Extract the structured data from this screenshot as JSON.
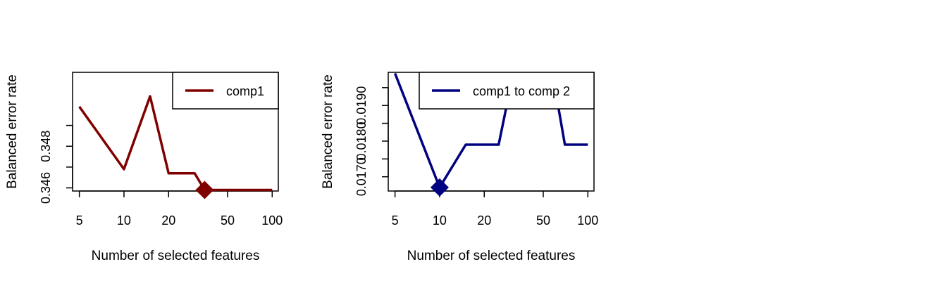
{
  "chart_data": [
    {
      "type": "line",
      "xlabel": "Number of selected features",
      "ylabel": "Balanced error rate",
      "xscale": "log",
      "x_ticks": [
        5,
        10,
        20,
        50,
        100
      ],
      "x_tick_labels": [
        "5",
        "10",
        "20",
        "50",
        "100"
      ],
      "xlim": [
        4.5,
        110
      ],
      "y_ticks": [
        0.346,
        0.347,
        0.348,
        0.349
      ],
      "y_tick_labels": [
        "0.346",
        "",
        "0.348",
        ""
      ],
      "ylim": [
        0.34585,
        0.35155
      ],
      "series": [
        {
          "name": "comp1",
          "color": "#800000",
          "x": [
            5,
            10,
            15,
            20,
            30,
            35,
            40,
            50,
            60,
            70,
            80,
            90,
            100
          ],
          "y": [
            0.3499,
            0.3469,
            0.3504,
            0.3467,
            0.3467,
            0.3459,
            0.3459,
            0.3459,
            0.3459,
            0.3459,
            0.3459,
            0.3459,
            0.3459
          ]
        }
      ],
      "optimum": {
        "x": 35,
        "y": 0.3459,
        "marker": "diamond",
        "color": "#800000"
      },
      "legend_position": "top-right",
      "grid": false
    },
    {
      "type": "line",
      "xlabel": "Number of selected features",
      "ylabel": "Balanced error rate",
      "xscale": "log",
      "x_ticks": [
        5,
        10,
        20,
        50,
        100
      ],
      "x_tick_labels": [
        "5",
        "10",
        "20",
        "50",
        "100"
      ],
      "xlim": [
        4.5,
        110
      ],
      "y_ticks": [
        0.017,
        0.0175,
        0.018,
        0.0185,
        0.019,
        0.0195
      ],
      "y_tick_labels": [
        "0.0170",
        "",
        "0.0180",
        "",
        "0.0190",
        ""
      ],
      "ylim": [
        0.0166,
        0.01993
      ],
      "series": [
        {
          "name": "comp1 to comp 2",
          "color": "#000080",
          "x": [
            5,
            10,
            15,
            20,
            25,
            30,
            40,
            50,
            60,
            70,
            80,
            90,
            100
          ],
          "y": [
            0.0199,
            0.0167,
            0.0179,
            0.0179,
            0.0179,
            0.0195,
            0.0195,
            0.0195,
            0.0195,
            0.0179,
            0.0179,
            0.0179,
            0.0179
          ]
        }
      ],
      "optimum": {
        "x": 10,
        "y": 0.0167,
        "marker": "diamond",
        "color": "#000080"
      },
      "legend_position": "top-right",
      "grid": false
    }
  ]
}
